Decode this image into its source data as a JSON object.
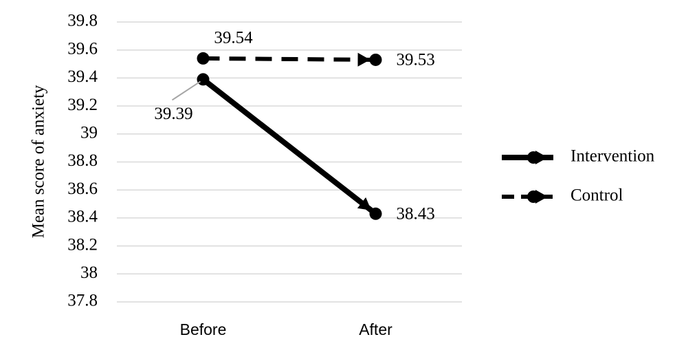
{
  "chart_data": {
    "type": "line",
    "y_label": "Mean score of anxiety",
    "categories": [
      "Before",
      "After"
    ],
    "series": [
      {
        "name": "Intervention",
        "color": "#000000",
        "line_style": "solid",
        "values": [
          39.39,
          38.43
        ]
      },
      {
        "name": "Control",
        "color": "#000000",
        "line_style": "dashed",
        "values": [
          39.54,
          39.53
        ]
      }
    ],
    "ylim": [
      37.8,
      39.8
    ],
    "yticks": [
      37.8,
      38,
      38.2,
      38.4,
      38.6,
      38.8,
      39,
      39.2,
      39.4,
      39.6,
      39.8
    ],
    "grid": true,
    "legend": "right",
    "markers": true,
    "arrows": true
  }
}
